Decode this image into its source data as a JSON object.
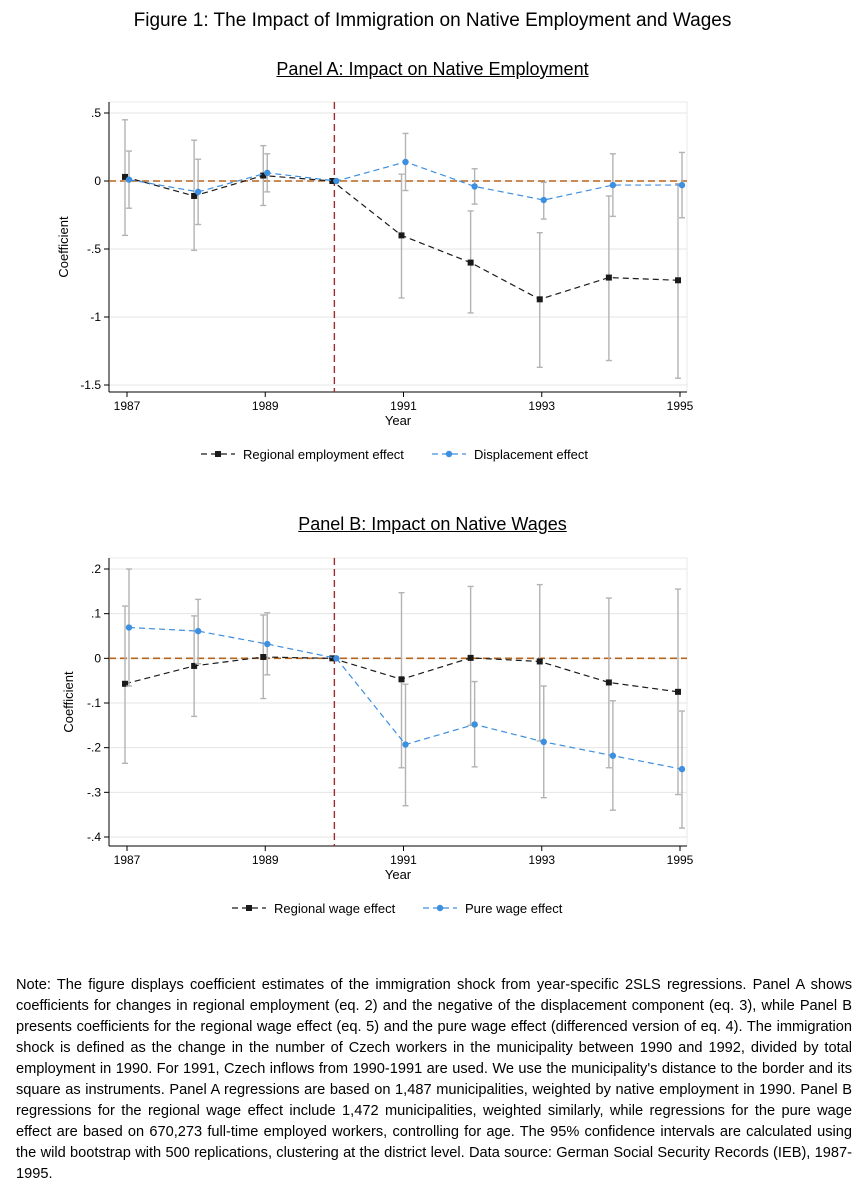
{
  "figure_title": "Figure 1: The Impact of Immigration on Native Employment and Wages",
  "note": "Note: The figure displays coefficient estimates of the immigration shock from year-specific 2SLS regressions. Panel A shows coefficients for changes in regional employment (eq. 2) and the negative of the displacement component (eq. 3), while Panel B presents coefficients for the regional wage effect (eq. 5) and the pure wage effect (differenced version of eq. 4). The immigration shock is defined as the change in the number of Czech workers in the municipality between 1990 and 1992, divided by total employment in 1990. For 1991, Czech inflows from 1990-1991 are used. We use the municipality's distance to the border and its square as instruments. Panel A regressions are based on 1,487 municipalities, weighted by native employment in 1990. Panel B regressions for the regional wage effect include 1,472 municipalities, weighted similarly, while regressions for the pure wage effect are based on 670,273 full-time employed workers, controlling for age. The 95% confidence intervals are calculated using the wild bootstrap with 500 replications, clustering at the district level. Data source: German Social Security Records (IEB), 1987-1995.",
  "colors": {
    "black_series": "#1a1a1a",
    "blue_series": "#3d8fe0",
    "zero_line": "#b5651d",
    "vline": "#9b2d30",
    "ci": "#b3b3b3",
    "grid": "#e4e4e4"
  },
  "chart_data": [
    {
      "type": "line",
      "title": "Panel A: Impact on Native Employment",
      "xlabel": "Year",
      "ylabel": "Coefficient",
      "x_ticks": [
        "1987",
        "1989",
        "1991",
        "1993",
        "1995"
      ],
      "y_ticks": [
        ".5",
        "0",
        "-.5",
        "-1",
        "-1.5"
      ],
      "y_tick_values": [
        0.5,
        0,
        -0.5,
        -1,
        -1.5
      ],
      "xlim": [
        1987,
        1995
      ],
      "ylim": [
        -1.5,
        0.5
      ],
      "zero_line": 0,
      "vline_x": 1990,
      "legend_position": "bottom",
      "series": [
        {
          "name": "Regional employment effect",
          "color": "#1a1a1a",
          "marker": "square",
          "x": [
            1987,
            1988,
            1989,
            1990,
            1991,
            1992,
            1993,
            1994,
            1995
          ],
          "y": [
            0.03,
            -0.11,
            0.04,
            0.0,
            -0.4,
            -0.6,
            -0.87,
            -0.71,
            -0.73
          ],
          "ci_low": [
            -0.4,
            -0.51,
            -0.18,
            0.0,
            -0.86,
            -0.97,
            -1.37,
            -1.32,
            -1.45
          ],
          "ci_high": [
            0.45,
            0.3,
            0.26,
            0.0,
            0.05,
            -0.22,
            -0.38,
            -0.11,
            -0.02
          ]
        },
        {
          "name": "Displacement effect",
          "color": "#3d8fe0",
          "marker": "circle",
          "x": [
            1987,
            1988,
            1989,
            1990,
            1991,
            1992,
            1993,
            1994,
            1995
          ],
          "y": [
            0.01,
            -0.08,
            0.06,
            0.0,
            0.14,
            -0.04,
            -0.14,
            -0.03,
            -0.03
          ],
          "ci_low": [
            -0.2,
            -0.32,
            -0.08,
            0.0,
            -0.07,
            -0.17,
            -0.28,
            -0.26,
            -0.27
          ],
          "ci_high": [
            0.22,
            0.16,
            0.2,
            0.0,
            0.35,
            0.09,
            -0.01,
            0.2,
            0.21
          ]
        }
      ]
    },
    {
      "type": "line",
      "title": "Panel B: Impact on Native Wages",
      "xlabel": "Year",
      "ylabel": "Coefficient",
      "x_ticks": [
        "1987",
        "1989",
        "1991",
        "1993",
        "1995"
      ],
      "y_ticks": [
        ".2",
        ".1",
        "0",
        "-.1",
        "-.2",
        "-.3",
        "-.4"
      ],
      "y_tick_values": [
        0.2,
        0.1,
        0,
        -0.1,
        -0.2,
        -0.3,
        -0.4
      ],
      "xlim": [
        1987,
        1995
      ],
      "ylim": [
        -0.4,
        0.2
      ],
      "zero_line": 0,
      "vline_x": 1990,
      "legend_position": "bottom",
      "series": [
        {
          "name": "Regional wage effect",
          "color": "#1a1a1a",
          "marker": "square",
          "x": [
            1987,
            1988,
            1989,
            1990,
            1991,
            1992,
            1993,
            1994,
            1995
          ],
          "y": [
            -0.057,
            -0.017,
            0.003,
            0.0,
            -0.047,
            0.001,
            -0.007,
            -0.054,
            -0.075
          ],
          "ci_low": [
            -0.235,
            -0.13,
            -0.09,
            0.0,
            -0.245,
            -0.15,
            -0.185,
            -0.245,
            -0.305
          ],
          "ci_high": [
            0.117,
            0.095,
            0.097,
            0.0,
            0.147,
            0.161,
            0.165,
            0.135,
            0.155
          ]
        },
        {
          "name": "Pure wage effect",
          "color": "#3d8fe0",
          "marker": "circle",
          "x": [
            1987,
            1988,
            1989,
            1990,
            1991,
            1992,
            1993,
            1994,
            1995
          ],
          "y": [
            0.069,
            0.061,
            0.032,
            0.0,
            -0.193,
            -0.148,
            -0.187,
            -0.218,
            -0.248
          ],
          "ci_low": [
            -0.062,
            -0.012,
            -0.037,
            0.0,
            -0.33,
            -0.243,
            -0.312,
            -0.34,
            -0.38
          ],
          "ci_high": [
            0.2,
            0.132,
            0.102,
            0.0,
            -0.058,
            -0.052,
            -0.062,
            -0.095,
            -0.118
          ]
        }
      ]
    }
  ]
}
